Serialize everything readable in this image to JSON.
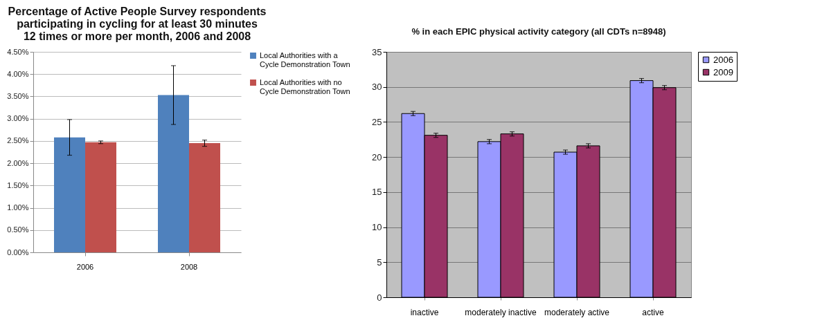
{
  "chart_data": [
    {
      "type": "bar",
      "title": "Percentage of Active People Survey respondents participating in cycling for at least 30 minutes 12 times or more per month, 2006 and 2008",
      "categories": [
        "2006",
        "2008"
      ],
      "series": [
        {
          "name": "Local Authorities with a Cycle Demonstration Town",
          "color": "#4f81bd",
          "values": [
            2.58,
            3.53
          ],
          "errors": [
            [
              2.18,
              2.98
            ],
            [
              2.87,
              4.19
            ]
          ]
        },
        {
          "name": "Local Authorities with no Cycle Demonstration Town",
          "color": "#c0504d",
          "values": [
            2.47,
            2.45
          ],
          "errors": [
            [
              2.44,
              2.5
            ],
            [
              2.38,
              2.52
            ]
          ]
        }
      ],
      "ylim": [
        0,
        4.5
      ],
      "yticks": [
        {
          "value": 0,
          "label": "0.00%"
        },
        {
          "value": 0.5,
          "label": "0.50%"
        },
        {
          "value": 1,
          "label": "1.00%"
        },
        {
          "value": 1.5,
          "label": "1.50%"
        },
        {
          "value": 2,
          "label": "2.00%"
        },
        {
          "value": 2.5,
          "label": "2.50%"
        },
        {
          "value": 3,
          "label": "3.00%"
        },
        {
          "value": 3.5,
          "label": "3.50%"
        },
        {
          "value": 4,
          "label": "4.00%"
        },
        {
          "value": 4.5,
          "label": "4.50%"
        }
      ],
      "grid": "y",
      "legend": "right"
    },
    {
      "type": "bar",
      "title": "% in each EPIC physical activity category (all CDTs n=8948)",
      "categories": [
        "inactive",
        "moderately inactive",
        "moderately active",
        "active"
      ],
      "series": [
        {
          "name": "2006",
          "color": "#9999ff",
          "values": [
            26.2,
            22.2,
            20.7,
            30.9
          ],
          "errors": [
            0.3,
            0.3,
            0.3,
            0.3
          ]
        },
        {
          "name": "2009",
          "color": "#993366",
          "values": [
            23.1,
            23.3,
            21.6,
            29.9
          ],
          "errors": [
            0.3,
            0.3,
            0.3,
            0.3
          ]
        }
      ],
      "ylim": [
        0,
        35
      ],
      "yticks": [
        0,
        5,
        10,
        15,
        20,
        25,
        30,
        35
      ],
      "grid": "y",
      "legend": "right"
    }
  ]
}
